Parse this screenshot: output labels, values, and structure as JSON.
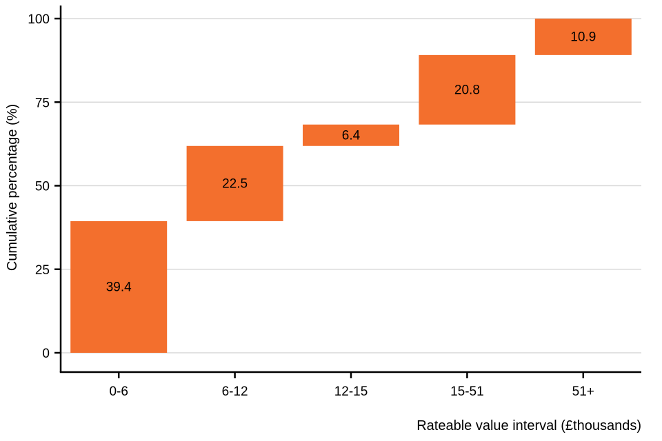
{
  "chart_data": {
    "type": "bar",
    "subtype": "waterfall",
    "title": "",
    "xlabel": "Rateable value interval (£thousands)",
    "ylabel": "Cumulative percentage (%)",
    "categories": [
      "0-6",
      "6-12",
      "12-15",
      "15-51",
      "51+"
    ],
    "values": [
      39.4,
      22.5,
      6.4,
      20.8,
      10.9
    ],
    "cumulative_start": [
      0,
      39.4,
      61.9,
      68.3,
      89.1
    ],
    "cumulative_end": [
      39.4,
      61.9,
      68.3,
      89.1,
      100
    ],
    "value_labels": [
      "39.4",
      "22.5",
      "6.4",
      "20.8",
      "10.9"
    ],
    "ylim": [
      0,
      100
    ],
    "yticks": [
      0,
      25,
      50,
      75,
      100
    ],
    "ytick_labels": [
      "0",
      "25",
      "50",
      "75",
      "100"
    ],
    "grid": true,
    "legend": false,
    "bar_color": "#F36F2D",
    "grid_color": "#d9d9d9",
    "axis_color": "#000000",
    "label_color": "#000000"
  }
}
